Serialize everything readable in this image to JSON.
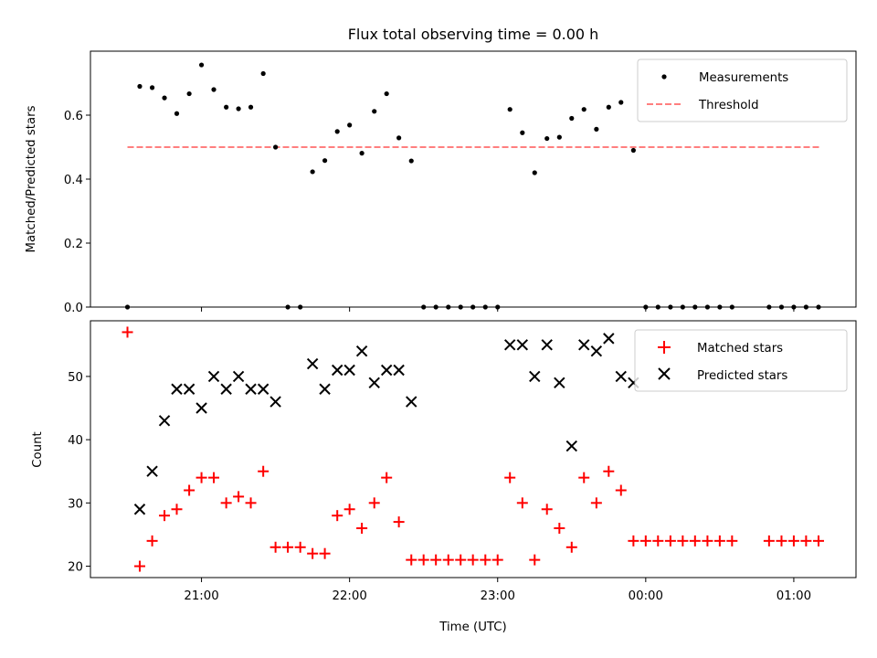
{
  "chart_data": [
    {
      "type": "scatter",
      "title": "Flux total observing time = 0.00 h",
      "xlabel": "",
      "ylabel": "Matched/Predicted stars",
      "xlim": [
        20.25,
        25.42
      ],
      "ylim": [
        0,
        0.8
      ],
      "yticks": [
        0.0,
        0.2,
        0.4,
        0.6
      ],
      "ytick_labels": [
        "0.0",
        "0.2",
        "0.4",
        "0.6"
      ],
      "grid": false,
      "legend_position": "upper right",
      "series": [
        {
          "name": "Measurements",
          "kind": "points",
          "color": "#000000",
          "x": [
            20.5,
            20.583,
            20.667,
            20.75,
            20.833,
            20.917,
            21.0,
            21.083,
            21.167,
            21.25,
            21.333,
            21.417,
            21.5,
            21.583,
            21.667,
            21.75,
            21.833,
            21.917,
            22.0,
            22.083,
            22.167,
            22.25,
            22.333,
            22.417,
            22.5,
            22.583,
            22.667,
            22.75,
            22.833,
            22.917,
            23.0,
            23.083,
            23.167,
            23.25,
            23.333,
            23.417,
            23.5,
            23.583,
            23.667,
            23.75,
            23.833,
            23.917,
            24.0,
            24.083,
            24.167,
            24.25,
            24.333,
            24.417,
            24.5,
            24.583,
            24.833,
            24.917,
            25.0,
            25.083,
            25.167
          ],
          "y": [
            0.0,
            0.69,
            0.686,
            0.654,
            0.605,
            0.667,
            0.757,
            0.68,
            0.625,
            0.62,
            0.625,
            0.73,
            0.5,
            0.0,
            0.0,
            0.423,
            0.458,
            0.549,
            0.569,
            0.481,
            0.612,
            0.667,
            0.529,
            0.457,
            0.0,
            0.0,
            0.0,
            0.0,
            0.0,
            0.0,
            0.0,
            0.618,
            0.545,
            0.42,
            0.527,
            0.531,
            0.59,
            0.618,
            0.556,
            0.625,
            0.64,
            0.49,
            0.0,
            0.0,
            0.0,
            0.0,
            0.0,
            0.0,
            0.0,
            0.0,
            0.0,
            0.0,
            0.0,
            0.0,
            0.0
          ]
        },
        {
          "name": "Threshold",
          "kind": "dashed-line",
          "color": "#ff7f7f",
          "x": [
            20.5,
            25.17
          ],
          "y": [
            0.5,
            0.5
          ]
        }
      ]
    },
    {
      "type": "scatter",
      "title": "",
      "xlabel": "Time (UTC)",
      "ylabel": "Count",
      "xlim": [
        20.25,
        25.42
      ],
      "ylim": [
        18.2,
        58.8
      ],
      "xticks": [
        21,
        22,
        23,
        24,
        25
      ],
      "xtick_labels": [
        "21:00",
        "22:00",
        "23:00",
        "00:00",
        "01:00"
      ],
      "yticks": [
        20,
        30,
        40,
        50
      ],
      "ytick_labels": [
        "20",
        "30",
        "40",
        "50"
      ],
      "grid": false,
      "legend_position": "upper right",
      "series": [
        {
          "name": "Matched stars",
          "kind": "plus",
          "color": "#ff0000",
          "x": [
            20.5,
            20.583,
            20.667,
            20.75,
            20.833,
            20.917,
            21.0,
            21.083,
            21.167,
            21.25,
            21.333,
            21.417,
            21.5,
            21.583,
            21.667,
            21.75,
            21.833,
            21.917,
            22.0,
            22.083,
            22.167,
            22.25,
            22.333,
            22.417,
            22.5,
            22.583,
            22.667,
            22.75,
            22.833,
            22.917,
            23.0,
            23.083,
            23.167,
            23.25,
            23.333,
            23.417,
            23.5,
            23.583,
            23.667,
            23.75,
            23.833,
            23.917,
            24.0,
            24.083,
            24.167,
            24.25,
            24.333,
            24.417,
            24.5,
            24.583,
            24.833,
            24.917,
            25.0,
            25.083,
            25.167
          ],
          "y": [
            57,
            20,
            24,
            28,
            29,
            32,
            34,
            34,
            30,
            31,
            30,
            35,
            23,
            23,
            23,
            22,
            22,
            28,
            29,
            26,
            30,
            34,
            27,
            21,
            21,
            21,
            21,
            21,
            21,
            21,
            21,
            34,
            30,
            21,
            29,
            26,
            23,
            34,
            30,
            35,
            32,
            24,
            24,
            24,
            24,
            24,
            24,
            24,
            24,
            24,
            24,
            24,
            24,
            24,
            24
          ]
        },
        {
          "name": "Predicted stars",
          "kind": "x",
          "color": "#000000",
          "x": [
            20.583,
            20.667,
            20.75,
            20.833,
            20.917,
            21.0,
            21.083,
            21.167,
            21.25,
            21.333,
            21.417,
            21.5,
            21.75,
            21.833,
            21.917,
            22.0,
            22.083,
            22.167,
            22.25,
            22.333,
            22.417,
            23.083,
            23.167,
            23.25,
            23.333,
            23.417,
            23.5,
            23.583,
            23.667,
            23.75,
            23.833,
            23.917
          ],
          "y": [
            29,
            35,
            43,
            48,
            48,
            45,
            50,
            48,
            50,
            48,
            48,
            46,
            52,
            48,
            51,
            51,
            54,
            49,
            51,
            51,
            46,
            55,
            55,
            50,
            55,
            49,
            39,
            55,
            54,
            56,
            50,
            49
          ]
        }
      ]
    }
  ]
}
